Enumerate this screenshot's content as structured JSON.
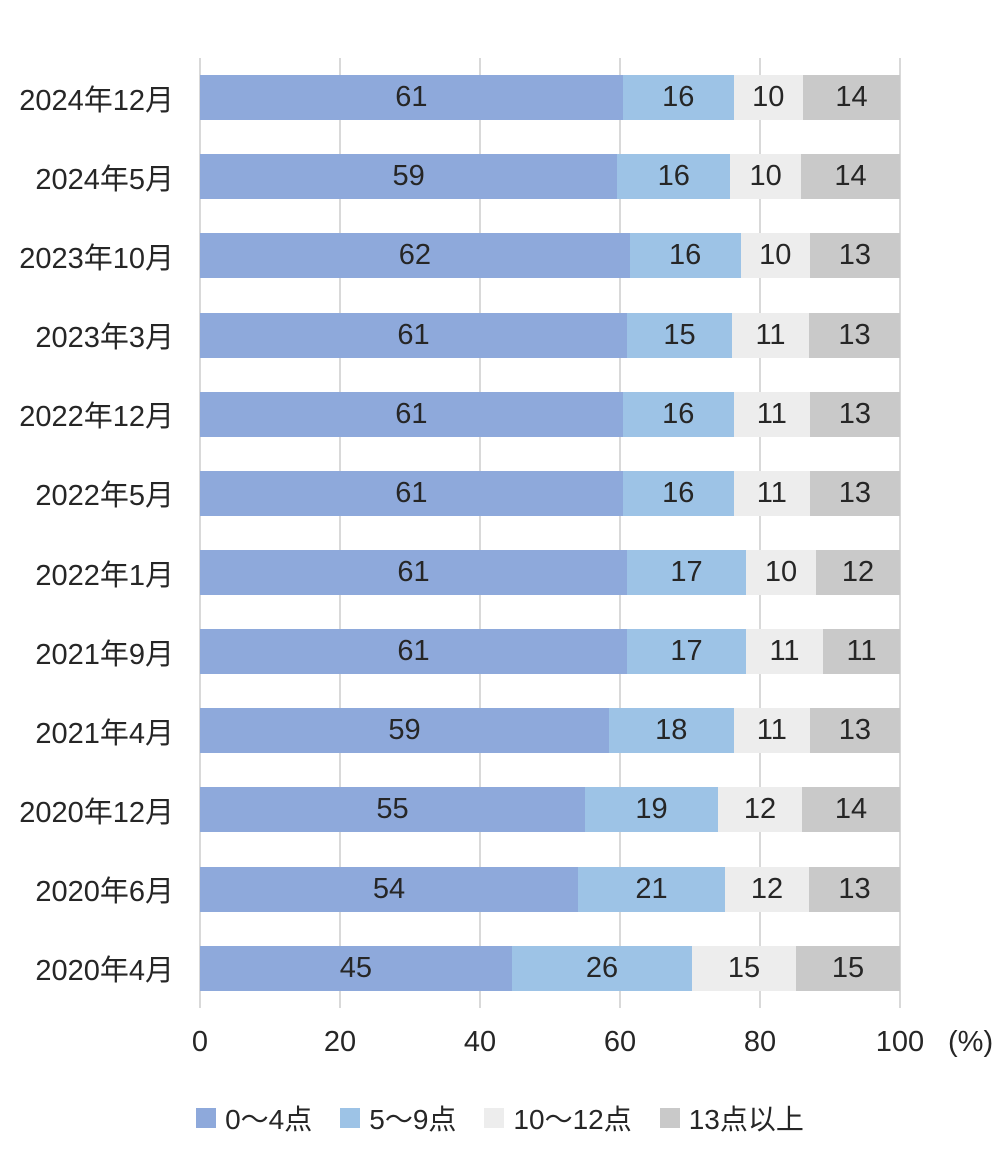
{
  "chart_data": {
    "type": "bar",
    "variant": "horizontal-stacked-100-percent",
    "title": "",
    "categories": [
      "2024年12月",
      "2024年5月",
      "2023年10月",
      "2023年3月",
      "2022年12月",
      "2022年5月",
      "2022年1月",
      "2021年9月",
      "2021年4月",
      "2020年12月",
      "2020年6月",
      "2020年4月"
    ],
    "series": [
      {
        "name": "0〜4点",
        "color": "#8EA9DB",
        "values": [
          61,
          59,
          62,
          61,
          61,
          61,
          61,
          61,
          59,
          55,
          54,
          45
        ]
      },
      {
        "name": "5〜9点",
        "color": "#9DC3E6",
        "values": [
          16,
          16,
          16,
          15,
          16,
          16,
          17,
          17,
          18,
          19,
          21,
          26
        ]
      },
      {
        "name": "10〜12点",
        "color": "#EDEDED",
        "values": [
          10,
          10,
          10,
          11,
          11,
          11,
          10,
          11,
          11,
          12,
          12,
          15
        ]
      },
      {
        "name": "13点以上",
        "color": "#C9C9C9",
        "values": [
          14,
          14,
          13,
          13,
          13,
          13,
          12,
          11,
          13,
          14,
          13,
          15
        ]
      }
    ],
    "xaxis": {
      "ticks": [
        "0",
        "20",
        "40",
        "60",
        "80",
        "100"
      ],
      "tick_values": [
        0,
        20,
        40,
        60,
        80,
        100
      ],
      "unit": "(%)",
      "range": [
        0,
        100
      ],
      "gridlines": true,
      "gridline_color": "#D9D9D9"
    },
    "legend_position": "bottom",
    "text_color": "#262626",
    "background_color": "#FFFFFF"
  }
}
